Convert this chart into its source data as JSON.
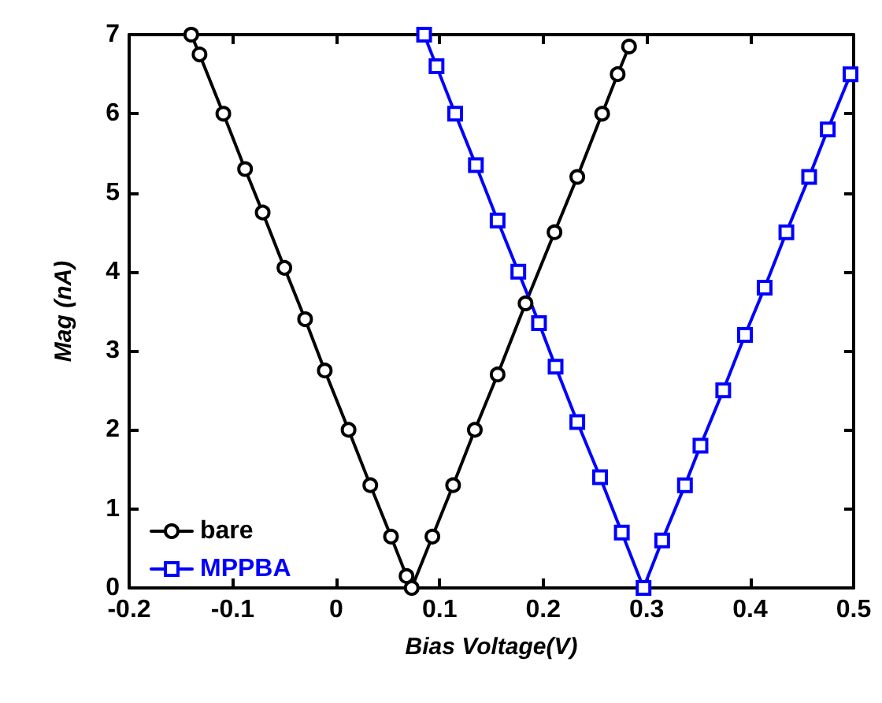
{
  "chart_data": {
    "type": "line",
    "xlabel": "Bias Voltage(V)",
    "ylabel": "Mag (nA)",
    "xlim": [
      -0.2,
      0.5
    ],
    "xticks": [
      -0.2,
      -0.1,
      0,
      0.1,
      0.2,
      0.3,
      0.4,
      0.5
    ],
    "ylim": [
      0,
      7
    ],
    "yticks": [
      0,
      1,
      2,
      3,
      4,
      5,
      6,
      7
    ],
    "grid": false,
    "legend": "bottom left",
    "line_style": "solid",
    "series": [
      {
        "name": "bare",
        "color": "#000000",
        "marker": "circle",
        "x": [
          -0.14,
          -0.132,
          -0.109,
          -0.088,
          -0.071,
          -0.05,
          -0.03,
          -0.011,
          0.012,
          0.033,
          0.053,
          0.068,
          0.073,
          0.093,
          0.113,
          0.134,
          0.156,
          0.183,
          0.211,
          0.233,
          0.257,
          0.272,
          0.283
        ],
        "values": [
          7.0,
          6.75,
          6.0,
          5.3,
          4.75,
          4.05,
          3.4,
          2.75,
          2.0,
          1.3,
          0.65,
          0.15,
          0,
          0.65,
          1.3,
          2.0,
          2.7,
          3.6,
          4.5,
          5.2,
          6.0,
          6.5,
          6.85
        ]
      },
      {
        "name": "MPPBA",
        "color": "#0000ff",
        "marker": "square",
        "x": [
          0.085,
          0.097,
          0.115,
          0.135,
          0.156,
          0.176,
          0.196,
          0.212,
          0.233,
          0.255,
          0.276,
          0.297,
          0.315,
          0.337,
          0.352,
          0.374,
          0.395,
          0.414,
          0.435,
          0.457,
          0.475,
          0.497
        ],
        "values": [
          7.0,
          6.6,
          6.0,
          5.35,
          4.65,
          4.0,
          3.35,
          2.8,
          2.1,
          1.4,
          0.7,
          0,
          0.6,
          1.3,
          1.8,
          2.5,
          3.2,
          3.8,
          4.5,
          5.2,
          5.8,
          6.5
        ]
      }
    ]
  }
}
